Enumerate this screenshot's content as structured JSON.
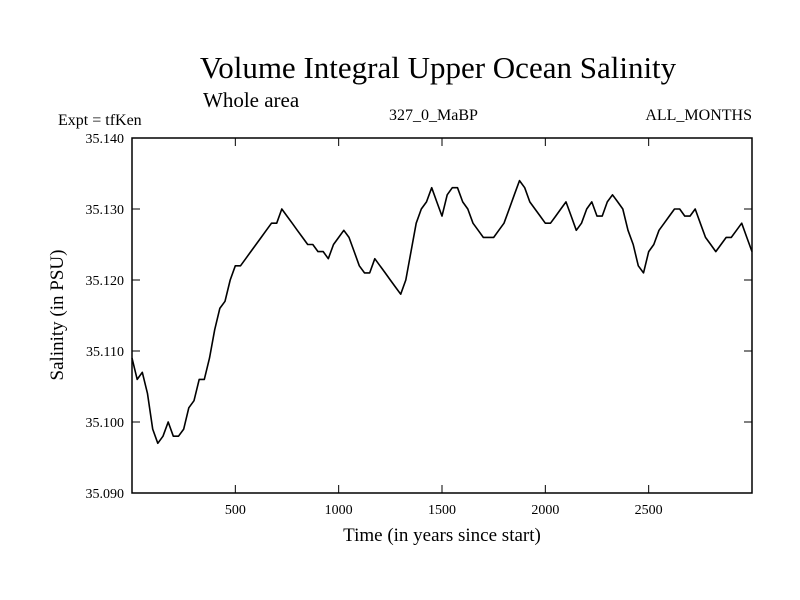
{
  "header": {
    "title": "Volume Integral Upper Ocean Salinity",
    "subtitle": "Whole area",
    "expt_label": "Expt = tfKen",
    "center_label": "327_0_MaBP",
    "right_label": "ALL_MONTHS"
  },
  "chart_data": {
    "type": "line",
    "title": "Volume Integral Upper Ocean Salinity",
    "subtitle": "Whole area",
    "xlabel": "Time (in years since start)",
    "ylabel": "Salinity (in PSU)",
    "xlim": [
      0,
      3000
    ],
    "ylim": [
      35.09,
      35.14
    ],
    "x_ticks": [
      500,
      1000,
      1500,
      2000,
      2500
    ],
    "x_tick_labels": [
      "500",
      "1000",
      "1500",
      "2000",
      "2500"
    ],
    "y_ticks": [
      35.09,
      35.1,
      35.11,
      35.12,
      35.13,
      35.14
    ],
    "y_tick_labels": [
      "35.090",
      "35.100",
      "35.110",
      "35.120",
      "35.130",
      "35.140"
    ],
    "grid": false,
    "line_color": "#000000",
    "series": [
      {
        "x": [
          0,
          25,
          50,
          75,
          100,
          125,
          150,
          175,
          200,
          225,
          250,
          275,
          300,
          325,
          350,
          375,
          400,
          425,
          450,
          475,
          500,
          525,
          550,
          575,
          600,
          625,
          650,
          675,
          700,
          725,
          750,
          775,
          800,
          825,
          850,
          875,
          900,
          925,
          950,
          975,
          1000,
          1025,
          1050,
          1075,
          1100,
          1125,
          1150,
          1175,
          1200,
          1225,
          1250,
          1275,
          1300,
          1325,
          1350,
          1375,
          1400,
          1425,
          1450,
          1475,
          1500,
          1525,
          1550,
          1575,
          1600,
          1625,
          1650,
          1675,
          1700,
          1725,
          1750,
          1775,
          1800,
          1825,
          1850,
          1875,
          1900,
          1925,
          1950,
          1975,
          2000,
          2025,
          2050,
          2075,
          2100,
          2125,
          2150,
          2175,
          2200,
          2225,
          2250,
          2275,
          2300,
          2325,
          2350,
          2375,
          2400,
          2425,
          2450,
          2475,
          2500,
          2525,
          2550,
          2575,
          2600,
          2625,
          2650,
          2675,
          2700,
          2725,
          2750,
          2775,
          2800,
          2825,
          2850,
          2875,
          2900,
          2925,
          2950,
          2975,
          3000
        ],
        "values": [
          35.109,
          35.106,
          35.107,
          35.104,
          35.099,
          35.097,
          35.098,
          35.1,
          35.098,
          35.098,
          35.099,
          35.102,
          35.103,
          35.106,
          35.106,
          35.109,
          35.113,
          35.116,
          35.117,
          35.12,
          35.122,
          35.122,
          35.123,
          35.124,
          35.125,
          35.126,
          35.127,
          35.128,
          35.128,
          35.13,
          35.129,
          35.128,
          35.127,
          35.126,
          35.125,
          35.125,
          35.124,
          35.124,
          35.123,
          35.125,
          35.126,
          35.127,
          35.126,
          35.124,
          35.122,
          35.121,
          35.121,
          35.123,
          35.122,
          35.121,
          35.12,
          35.119,
          35.118,
          35.12,
          35.124,
          35.128,
          35.13,
          35.131,
          35.133,
          35.131,
          35.129,
          35.132,
          35.133,
          35.133,
          35.131,
          35.13,
          35.128,
          35.127,
          35.126,
          35.126,
          35.126,
          35.127,
          35.128,
          35.13,
          35.132,
          35.134,
          35.133,
          35.131,
          35.13,
          35.129,
          35.128,
          35.128,
          35.129,
          35.13,
          35.131,
          35.129,
          35.127,
          35.128,
          35.13,
          35.131,
          35.129,
          35.129,
          35.131,
          35.132,
          35.131,
          35.13,
          35.127,
          35.125,
          35.122,
          35.121,
          35.124,
          35.125,
          35.127,
          35.128,
          35.129,
          35.13,
          35.13,
          35.129,
          35.129,
          35.13,
          35.128,
          35.126,
          35.125,
          35.124,
          35.125,
          35.126,
          35.126,
          35.127,
          35.128,
          35.126,
          35.124
        ]
      }
    ]
  }
}
